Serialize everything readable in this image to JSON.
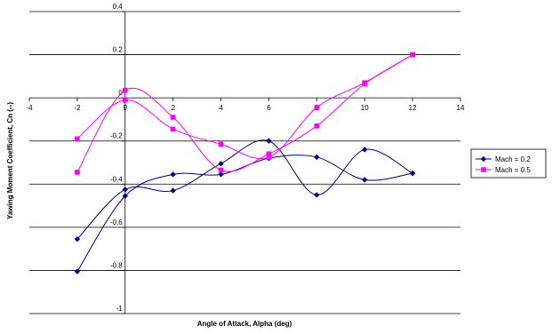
{
  "chart_data": {
    "type": "line",
    "xlabel": "Angle of Attack, Alpha (deg)",
    "ylabel": "Yawing Moment Coefficient, Cn (--)",
    "xlim": [
      -4,
      14
    ],
    "ylim": [
      -1,
      0.4
    ],
    "xticks": [
      "-4",
      "-2",
      "0",
      "2",
      "4",
      "6",
      "8",
      "10",
      "12",
      "14"
    ],
    "yticks": [
      "-1",
      "-0.8",
      "-0.6",
      "-0.4",
      "-0.2",
      "0",
      "0.2",
      "0.4"
    ],
    "grid": "horizontal",
    "smoothed": true,
    "legend": "right",
    "series": [
      {
        "name": "Mach = 0.2",
        "color": "#000080",
        "marker": "diamond",
        "runs": [
          {
            "x": [
              -2,
              0,
              2,
              4,
              6,
              8,
              10,
              12
            ],
            "y": [
              -0.655,
              -0.425,
              -0.43,
              -0.305,
              -0.2,
              -0.45,
              -0.24,
              -0.35
            ]
          },
          {
            "x": [
              -2,
              0,
              2,
              4,
              6,
              8,
              10,
              12
            ],
            "y": [
              -0.805,
              -0.455,
              -0.355,
              -0.355,
              -0.28,
              -0.275,
              -0.38,
              -0.35
            ]
          }
        ]
      },
      {
        "name": "Mach = 0.5",
        "color": "#FF00FF",
        "marker": "square",
        "runs": [
          {
            "x": [
              -2,
              0,
              2,
              4,
              6,
              8,
              10,
              12
            ],
            "y": [
              -0.345,
              0.035,
              -0.09,
              -0.335,
              -0.26,
              -0.13,
              0.065,
              0.2
            ]
          },
          {
            "x": [
              -2,
              0,
              2,
              4,
              6,
              8,
              10,
              12
            ],
            "y": [
              -0.19,
              -0.01,
              -0.145,
              -0.215,
              -0.275,
              -0.045,
              0.07,
              0.2
            ]
          }
        ]
      }
    ]
  }
}
